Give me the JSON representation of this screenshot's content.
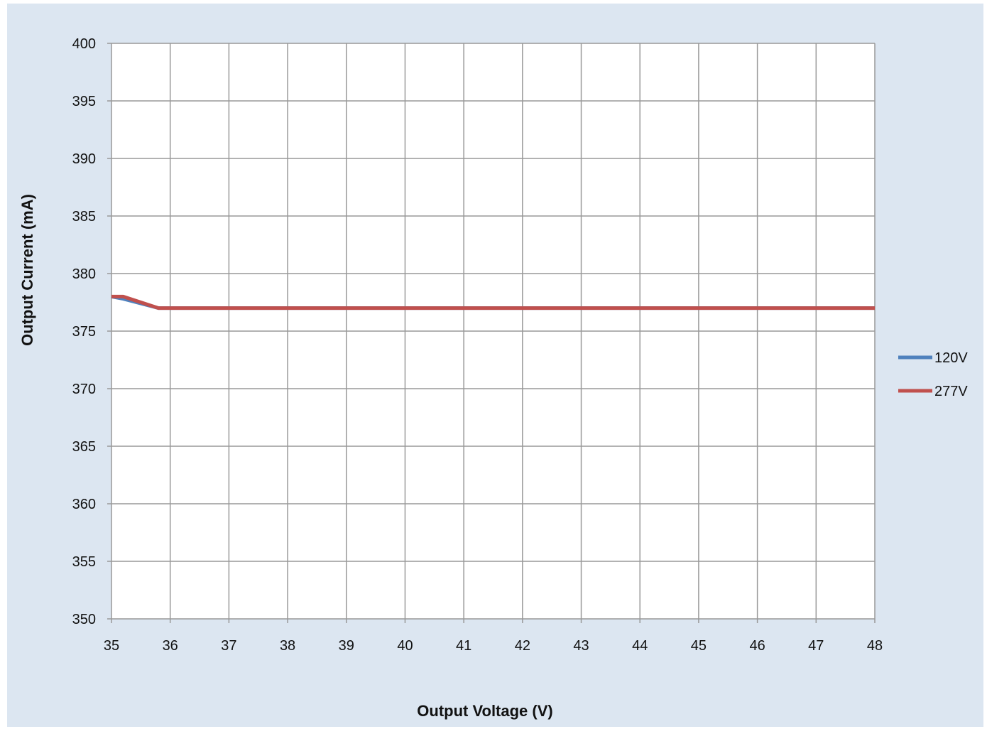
{
  "colors": {
    "background": "#dce6f1",
    "plot_area": "#ffffff",
    "grid": "#999999",
    "series_120V": "#4f81bd",
    "series_277V": "#c0504d"
  },
  "chart_data": {
    "type": "line",
    "xlabel": "Output Voltage (V)",
    "ylabel": "Output Current (mA)",
    "xlim": [
      35,
      48
    ],
    "ylim": [
      350,
      400
    ],
    "x_ticks": [
      35,
      36,
      37,
      38,
      39,
      40,
      41,
      42,
      43,
      44,
      45,
      46,
      47,
      48
    ],
    "y_ticks": [
      350,
      355,
      360,
      365,
      370,
      375,
      380,
      385,
      390,
      395,
      400
    ],
    "grid": true,
    "legend_position": "right",
    "series": [
      {
        "name": "120V",
        "x": [
          35,
          35.2,
          35.8,
          48
        ],
        "y": [
          378,
          377.8,
          377,
          377
        ]
      },
      {
        "name": "277V",
        "x": [
          35,
          35.2,
          35.8,
          48
        ],
        "y": [
          378,
          378,
          377,
          377
        ]
      }
    ]
  }
}
